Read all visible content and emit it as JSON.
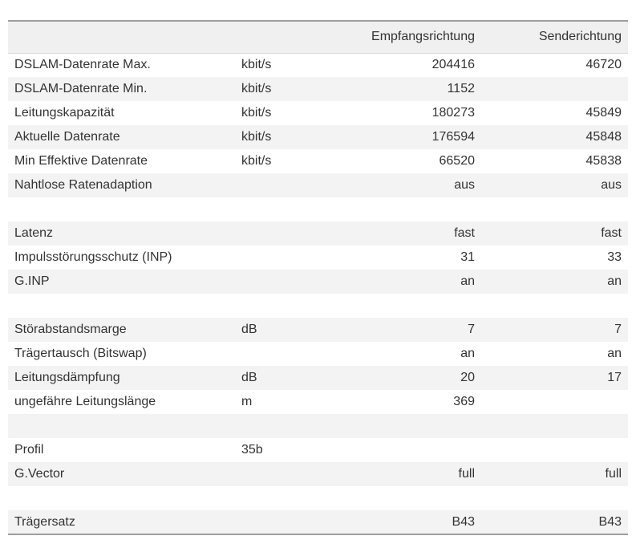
{
  "table": {
    "headers": {
      "label": "",
      "unit": "",
      "rx": "Empfangsrichtung",
      "tx": "Senderichtung"
    },
    "rows": [
      {
        "label": "DSLAM-Datenrate Max.",
        "unit": "kbit/s",
        "rx": "204416",
        "tx": "46720"
      },
      {
        "label": "DSLAM-Datenrate Min.",
        "unit": "kbit/s",
        "rx": "1152",
        "tx": ""
      },
      {
        "label": "Leitungskapazität",
        "unit": "kbit/s",
        "rx": "180273",
        "tx": "45849"
      },
      {
        "label": "Aktuelle Datenrate",
        "unit": "kbit/s",
        "rx": "176594",
        "tx": "45848"
      },
      {
        "label": "Min Effektive Datenrate",
        "unit": "kbit/s",
        "rx": "66520",
        "tx": "45838"
      },
      {
        "label": "Nahtlose Ratenadaption",
        "unit": "",
        "rx": "aus",
        "tx": "aus"
      },
      {
        "type": "spacer"
      },
      {
        "label": "Latenz",
        "unit": "",
        "rx": "fast",
        "tx": "fast"
      },
      {
        "label": "Impulsstörungsschutz (INP)",
        "unit": "",
        "rx": "31",
        "tx": "33"
      },
      {
        "label": "G.INP",
        "unit": "",
        "rx": "an",
        "tx": "an"
      },
      {
        "type": "spacer"
      },
      {
        "label": "Störabstandsmarge",
        "unit": "dB",
        "rx": "7",
        "tx": "7"
      },
      {
        "label": "Trägertausch (Bitswap)",
        "unit": "",
        "rx": "an",
        "tx": "an"
      },
      {
        "label": "Leitungsdämpfung",
        "unit": "dB",
        "rx": "20",
        "tx": "17"
      },
      {
        "label": "ungefähre Leitungslänge",
        "unit": "m",
        "rx": "369",
        "tx": ""
      },
      {
        "type": "spacer"
      },
      {
        "label": "Profil",
        "unit": "35b",
        "rx": "",
        "tx": ""
      },
      {
        "label": "G.Vector",
        "unit": "",
        "rx": "full",
        "tx": "full"
      },
      {
        "type": "spacer"
      },
      {
        "label": "Trägersatz",
        "unit": "",
        "rx": "B43",
        "tx": "B43"
      }
    ],
    "colors": {
      "header_bg": "#f0f0f0",
      "stripe_bg": "#f3f3f3",
      "border": "#9e9e9e",
      "header_border": "#dadada",
      "text": "#333333",
      "page_bg": "#ffffff"
    }
  }
}
